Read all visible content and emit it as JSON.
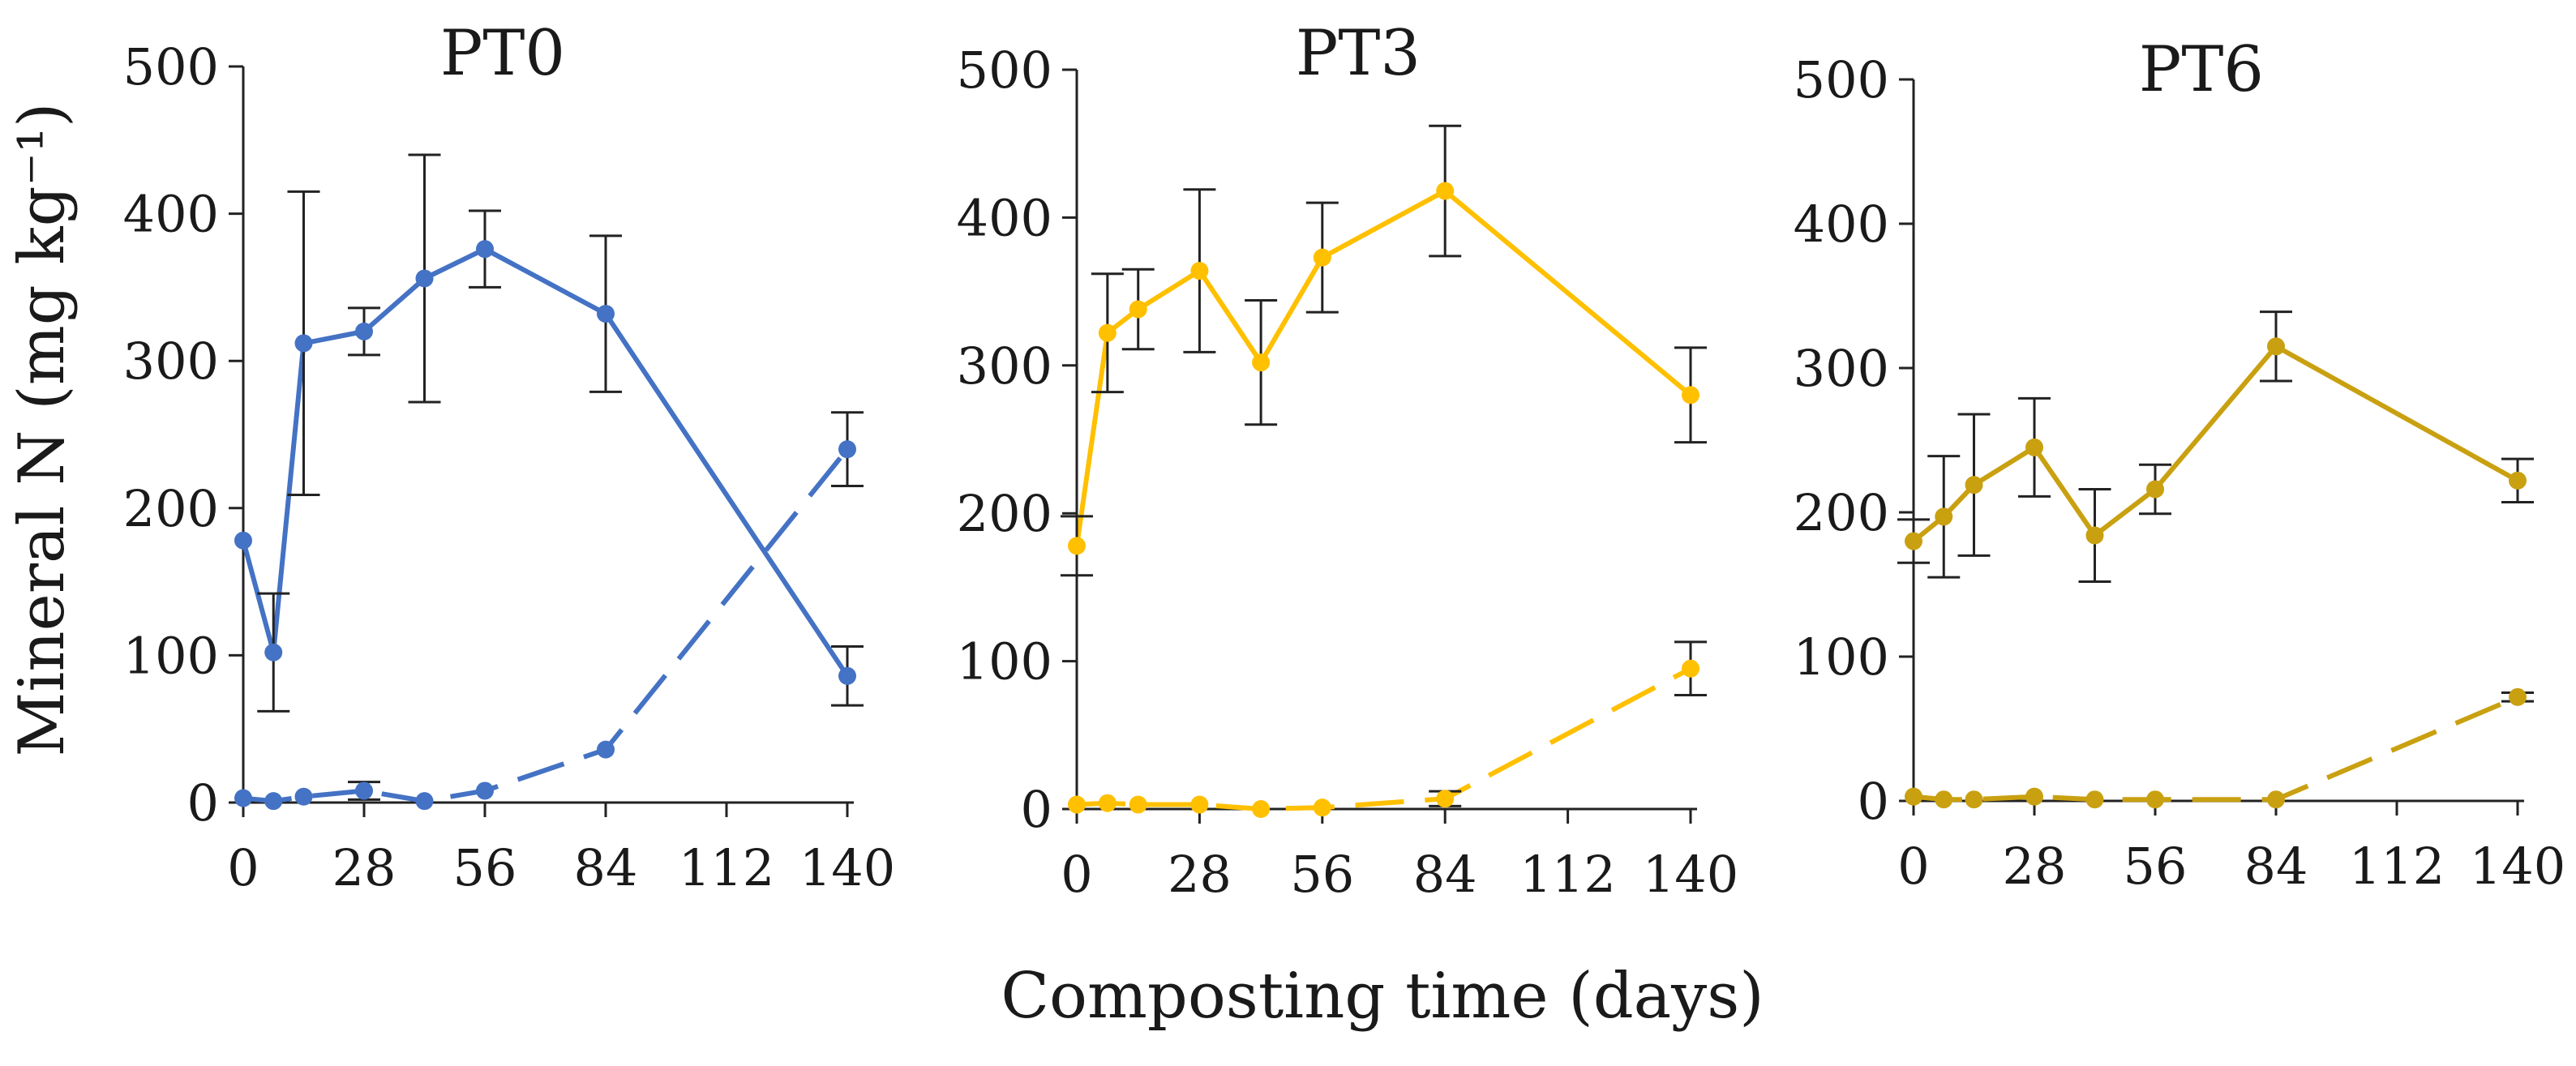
{
  "figure": {
    "ylabel": "Mineral N (mg kg⁻¹)",
    "xlabel": "Composting time (days)"
  },
  "chart_data": [
    {
      "type": "line",
      "title": "PT0",
      "color": "#4472C4",
      "xlim": [
        0,
        140
      ],
      "ylim": [
        0,
        500
      ],
      "xticks": [
        0,
        28,
        56,
        84,
        112,
        140
      ],
      "yticks": [
        0,
        100,
        200,
        300,
        400,
        500
      ],
      "series": [
        {
          "name": "solid",
          "style": "solid",
          "x": [
            0,
            7,
            14,
            28,
            42,
            56,
            84,
            140
          ],
          "y": [
            178,
            102,
            312,
            320,
            356,
            376,
            332,
            86
          ],
          "err": [
            0,
            40,
            103,
            16,
            84,
            26,
            53,
            20
          ]
        },
        {
          "name": "dashed",
          "style": "dashed",
          "x": [
            0,
            7,
            14,
            28,
            42,
            56,
            84,
            140
          ],
          "y": [
            3,
            1,
            4,
            8,
            1,
            8,
            36,
            240
          ],
          "err": [
            0,
            0,
            0,
            6,
            0,
            0,
            0,
            25
          ]
        }
      ]
    },
    {
      "type": "line",
      "title": "PT3",
      "color": "#FFC000",
      "xlim": [
        0,
        140
      ],
      "ylim": [
        0,
        500
      ],
      "xticks": [
        0,
        28,
        56,
        84,
        112,
        140
      ],
      "yticks": [
        0,
        100,
        200,
        300,
        400,
        500
      ],
      "series": [
        {
          "name": "solid",
          "style": "solid",
          "x": [
            0,
            7,
            14,
            28,
            42,
            56,
            84,
            140
          ],
          "y": [
            178,
            322,
            338,
            364,
            302,
            373,
            418,
            280
          ],
          "err": [
            20,
            40,
            27,
            55,
            42,
            37,
            44,
            32
          ]
        },
        {
          "name": "dashed",
          "style": "dashed",
          "x": [
            0,
            7,
            14,
            28,
            42,
            56,
            84,
            140
          ],
          "y": [
            3,
            4,
            3,
            3,
            0,
            1,
            7,
            95
          ],
          "err": [
            0,
            0,
            0,
            0,
            0,
            0,
            5,
            18
          ]
        }
      ]
    },
    {
      "type": "line",
      "title": "PT6",
      "color": "#C9A010",
      "xlim": [
        0,
        140
      ],
      "ylim": [
        0,
        500
      ],
      "xticks": [
        0,
        28,
        56,
        84,
        112,
        140
      ],
      "yticks": [
        0,
        100,
        200,
        300,
        400,
        500
      ],
      "series": [
        {
          "name": "solid",
          "style": "solid",
          "x": [
            0,
            7,
            14,
            28,
            42,
            56,
            84,
            140
          ],
          "y": [
            180,
            197,
            219,
            245,
            184,
            216,
            315,
            222
          ],
          "err": [
            15,
            42,
            49,
            34,
            32,
            17,
            24,
            15
          ]
        },
        {
          "name": "dashed",
          "style": "dashed",
          "x": [
            0,
            7,
            14,
            28,
            42,
            56,
            84,
            140
          ],
          "y": [
            3,
            1,
            1,
            3,
            1,
            1,
            1,
            72
          ],
          "err": [
            0,
            0,
            0,
            0,
            0,
            0,
            0,
            3
          ]
        }
      ]
    }
  ]
}
